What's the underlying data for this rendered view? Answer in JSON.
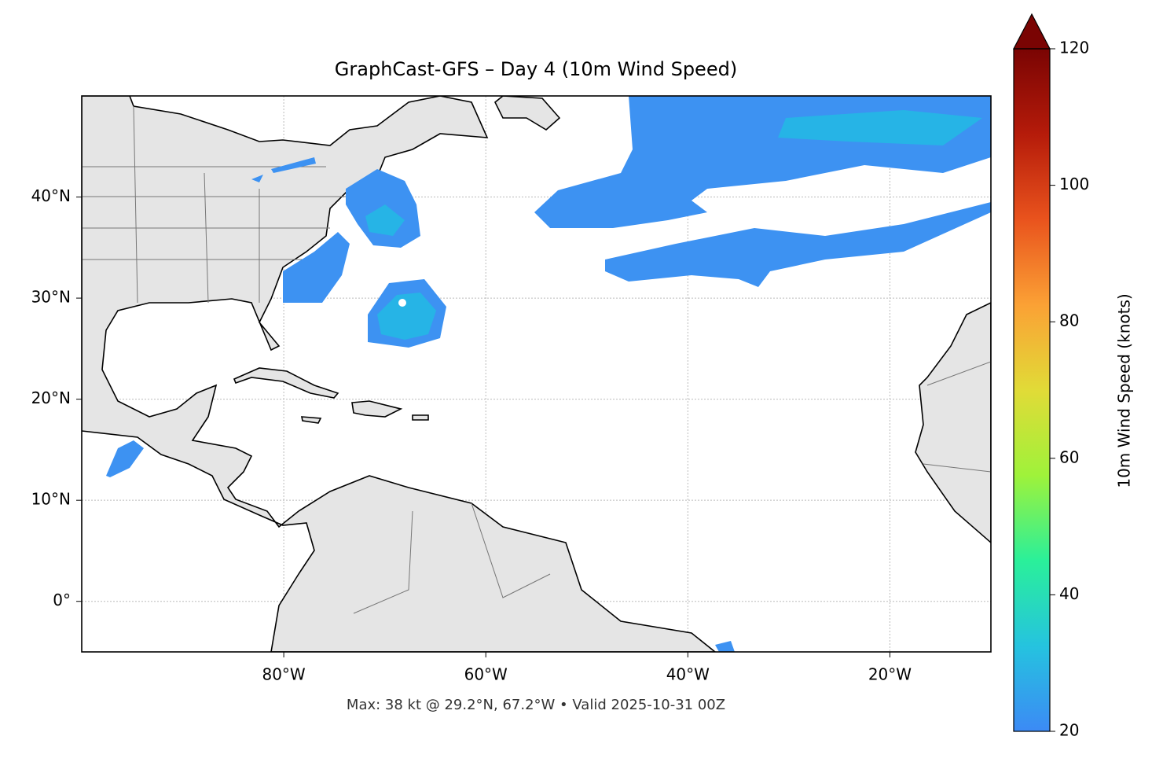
{
  "chart_data": {
    "type": "map",
    "title": "GraphCast-GFS – Day 4 (10m Wind Speed)",
    "footer": "Max: 38 kt @ 29.2°N, 67.2°W • Valid 2025-10-31 00Z",
    "xlim": [
      -100,
      -10
    ],
    "ylim": [
      -5,
      50
    ],
    "xticks": [
      {
        "value": -80,
        "label": "80°W"
      },
      {
        "value": -60,
        "label": "60°W"
      },
      {
        "value": -40,
        "label": "40°W"
      },
      {
        "value": -20,
        "label": "20°W"
      }
    ],
    "yticks": [
      {
        "value": 0,
        "label": "0°"
      },
      {
        "value": 10,
        "label": "10°N"
      },
      {
        "value": 20,
        "label": "20°N"
      },
      {
        "value": 30,
        "label": "30°N"
      },
      {
        "value": 40,
        "label": "40°N"
      }
    ],
    "grid": true,
    "colorbar": {
      "label": "10m Wind Speed (knots)",
      "lim": [
        20,
        120
      ],
      "ticks": [
        20,
        40,
        60,
        80,
        100,
        120
      ],
      "colors": [
        "#3c8af5",
        "#25c3df",
        "#2af09a",
        "#9ff23a",
        "#e1db37",
        "#fba135",
        "#e9531d",
        "#b51b0a",
        "#7a0403"
      ]
    }
  }
}
